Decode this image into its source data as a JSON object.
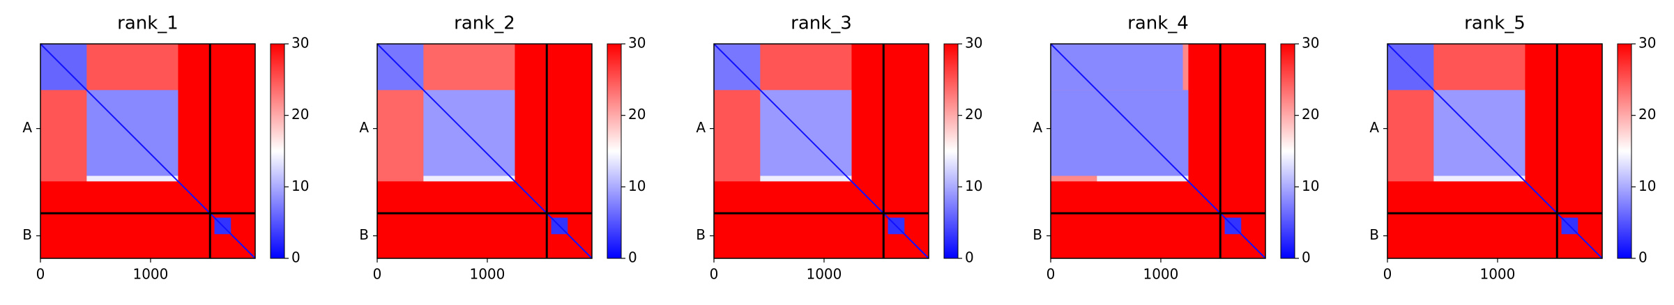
{
  "chart_data": [
    {
      "type": "heatmap",
      "title": "rank_1",
      "xlim": [
        0,
        1950
      ],
      "ylim": [
        1950,
        0
      ],
      "xticks": [
        0,
        1000
      ],
      "yticks": [
        {
          "value": 770,
          "label": "A"
        },
        {
          "value": 1745,
          "label": "B"
        }
      ],
      "chain_breaks": [
        1540
      ],
      "diagonal": 1,
      "clim": [
        0,
        30
      ],
      "cticks": [
        0,
        10,
        20,
        30
      ],
      "regions": [
        {
          "x": [
            0,
            1950
          ],
          "y": [
            0,
            1950
          ],
          "value": 30
        },
        {
          "x": [
            0,
            1250
          ],
          "y": [
            0,
            1250
          ],
          "value": 25
        },
        {
          "x": [
            0,
            420
          ],
          "y": [
            0,
            420
          ],
          "value": 6
        },
        {
          "x": [
            420,
            1250
          ],
          "y": [
            420,
            1200
          ],
          "value": 8
        },
        {
          "x": [
            420,
            1250
          ],
          "y": [
            1200,
            1250
          ],
          "value": 14
        },
        {
          "x": [
            1580,
            1730
          ],
          "y": [
            1580,
            1730
          ],
          "value": 3
        }
      ]
    },
    {
      "type": "heatmap",
      "title": "rank_2",
      "xlim": [
        0,
        1950
      ],
      "ylim": [
        1950,
        0
      ],
      "xticks": [
        0,
        1000
      ],
      "yticks": [
        {
          "value": 770,
          "label": "A"
        },
        {
          "value": 1745,
          "label": "B"
        }
      ],
      "chain_breaks": [
        1540
      ],
      "diagonal": 1,
      "clim": [
        0,
        30
      ],
      "cticks": [
        0,
        10,
        20,
        30
      ],
      "regions": [
        {
          "x": [
            0,
            1950
          ],
          "y": [
            0,
            1950
          ],
          "value": 30
        },
        {
          "x": [
            0,
            1250
          ],
          "y": [
            0,
            1250
          ],
          "value": 24
        },
        {
          "x": [
            0,
            420
          ],
          "y": [
            0,
            420
          ],
          "value": 7
        },
        {
          "x": [
            420,
            1250
          ],
          "y": [
            420,
            1200
          ],
          "value": 9
        },
        {
          "x": [
            420,
            1250
          ],
          "y": [
            1200,
            1250
          ],
          "value": 14
        },
        {
          "x": [
            1580,
            1730
          ],
          "y": [
            1580,
            1730
          ],
          "value": 3
        }
      ]
    },
    {
      "type": "heatmap",
      "title": "rank_3",
      "xlim": [
        0,
        1950
      ],
      "ylim": [
        1950,
        0
      ],
      "xticks": [
        0,
        1000
      ],
      "yticks": [
        {
          "value": 770,
          "label": "A"
        },
        {
          "value": 1745,
          "label": "B"
        }
      ],
      "chain_breaks": [
        1540
      ],
      "diagonal": 1,
      "clim": [
        0,
        30
      ],
      "cticks": [
        0,
        10,
        20,
        30
      ],
      "regions": [
        {
          "x": [
            0,
            1950
          ],
          "y": [
            0,
            1950
          ],
          "value": 30
        },
        {
          "x": [
            0,
            1250
          ],
          "y": [
            0,
            1250
          ],
          "value": 25
        },
        {
          "x": [
            0,
            420
          ],
          "y": [
            0,
            420
          ],
          "value": 7
        },
        {
          "x": [
            420,
            1250
          ],
          "y": [
            420,
            1200
          ],
          "value": 9
        },
        {
          "x": [
            420,
            1250
          ],
          "y": [
            1200,
            1250
          ],
          "value": 14
        },
        {
          "x": [
            1580,
            1730
          ],
          "y": [
            1580,
            1730
          ],
          "value": 3
        }
      ]
    },
    {
      "type": "heatmap",
      "title": "rank_4",
      "xlim": [
        0,
        1950
      ],
      "ylim": [
        1950,
        0
      ],
      "xticks": [
        0,
        1000
      ],
      "yticks": [
        {
          "value": 770,
          "label": "A"
        },
        {
          "value": 1745,
          "label": "B"
        }
      ],
      "chain_breaks": [
        1540
      ],
      "diagonal": 1,
      "clim": [
        0,
        30
      ],
      "cticks": [
        0,
        10,
        20,
        30
      ],
      "regions": [
        {
          "x": [
            0,
            1950
          ],
          "y": [
            0,
            1950
          ],
          "value": 30
        },
        {
          "x": [
            0,
            1250
          ],
          "y": [
            0,
            1250
          ],
          "value": 22
        },
        {
          "x": [
            0,
            1200
          ],
          "y": [
            0,
            420
          ],
          "value": 8
        },
        {
          "x": [
            0,
            1250
          ],
          "y": [
            420,
            1200
          ],
          "value": 8
        },
        {
          "x": [
            420,
            1250
          ],
          "y": [
            1200,
            1250
          ],
          "value": 14
        },
        {
          "x": [
            1580,
            1730
          ],
          "y": [
            1580,
            1730
          ],
          "value": 3
        }
      ]
    },
    {
      "type": "heatmap",
      "title": "rank_5",
      "xlim": [
        0,
        1950
      ],
      "ylim": [
        1950,
        0
      ],
      "xticks": [
        0,
        1000
      ],
      "yticks": [
        {
          "value": 770,
          "label": "A"
        },
        {
          "value": 1745,
          "label": "B"
        }
      ],
      "chain_breaks": [
        1540
      ],
      "diagonal": 1,
      "clim": [
        0,
        30
      ],
      "cticks": [
        0,
        10,
        20,
        30
      ],
      "regions": [
        {
          "x": [
            0,
            1950
          ],
          "y": [
            0,
            1950
          ],
          "value": 30
        },
        {
          "x": [
            0,
            1250
          ],
          "y": [
            0,
            1250
          ],
          "value": 25
        },
        {
          "x": [
            0,
            420
          ],
          "y": [
            0,
            420
          ],
          "value": 6
        },
        {
          "x": [
            420,
            1250
          ],
          "y": [
            420,
            1200
          ],
          "value": 9
        },
        {
          "x": [
            420,
            1250
          ],
          "y": [
            1200,
            1250
          ],
          "value": 14
        },
        {
          "x": [
            1580,
            1730
          ],
          "y": [
            1580,
            1730
          ],
          "value": 3
        }
      ]
    }
  ]
}
